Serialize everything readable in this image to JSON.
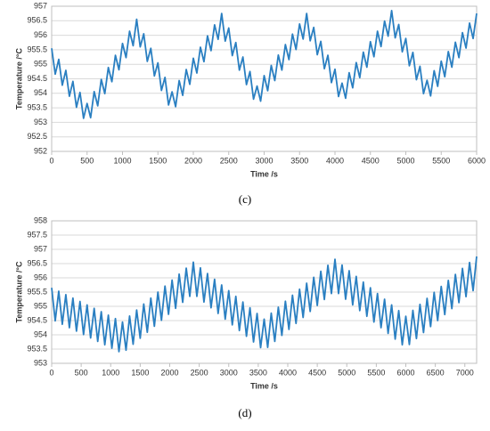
{
  "chart_data": [
    {
      "type": "line",
      "caption": "(c)",
      "y_label": "Temperature /°C",
      "x_label": "Time /s",
      "color": "#2a7fc1",
      "grid": true,
      "xlim": [
        0,
        6000
      ],
      "xticks": [
        0,
        500,
        1000,
        1500,
        2000,
        2500,
        3000,
        3500,
        4000,
        4500,
        5000,
        5500,
        6000
      ],
      "ylim": [
        952,
        957
      ],
      "yticks": [
        952,
        952.5,
        953,
        953.5,
        954,
        954.5,
        955,
        955.5,
        956,
        956.5,
        957
      ],
      "x": [
        0,
        50,
        100,
        150,
        200,
        250,
        300,
        350,
        400,
        450,
        500,
        550,
        600,
        650,
        700,
        750,
        800,
        850,
        900,
        950,
        1000,
        1050,
        1100,
        1150,
        1200,
        1250,
        1300,
        1350,
        1400,
        1450,
        1500,
        1550,
        1600,
        1650,
        1700,
        1750,
        1800,
        1850,
        1900,
        1950,
        2000,
        2050,
        2100,
        2150,
        2200,
        2250,
        2300,
        2350,
        2400,
        2450,
        2500,
        2550,
        2600,
        2650,
        2700,
        2750,
        2800,
        2850,
        2900,
        2950,
        3000,
        3050,
        3100,
        3150,
        3200,
        3250,
        3300,
        3350,
        3400,
        3450,
        3500,
        3550,
        3600,
        3650,
        3700,
        3750,
        3800,
        3850,
        3900,
        3950,
        4000,
        4050,
        4100,
        4150,
        4200,
        4250,
        4300,
        4350,
        4400,
        4450,
        4500,
        4550,
        4600,
        4650,
        4700,
        4750,
        4800,
        4850,
        4900,
        4950,
        5000,
        5050,
        5100,
        5150,
        5200,
        5250,
        5300,
        5350,
        5400,
        5450,
        5500,
        5550,
        5600,
        5650,
        5700,
        5750,
        5800,
        5850,
        5900,
        5950,
        6000
      ],
      "values": [
        955.55,
        954.66,
        955.17,
        954.28,
        954.79,
        953.9,
        954.41,
        953.52,
        954.03,
        953.14,
        953.65,
        953.16,
        954.06,
        953.57,
        954.48,
        953.99,
        954.89,
        954.4,
        955.31,
        954.81,
        955.72,
        955.23,
        956.14,
        955.64,
        956.55,
        955.6,
        956.05,
        955.1,
        955.55,
        954.6,
        955.05,
        954.1,
        954.55,
        953.6,
        954.05,
        953.54,
        954.44,
        953.93,
        954.82,
        954.31,
        955.21,
        954.7,
        955.59,
        955.09,
        955.98,
        955.47,
        956.36,
        955.86,
        956.75,
        955.8,
        956.25,
        955.3,
        955.75,
        954.8,
        955.25,
        954.3,
        954.75,
        953.8,
        954.25,
        953.73,
        954.61,
        954.09,
        954.96,
        954.44,
        955.32,
        954.8,
        955.68,
        955.16,
        956.04,
        955.51,
        956.39,
        955.87,
        956.75,
        955.81,
        956.27,
        955.33,
        955.79,
        954.85,
        955.31,
        954.37,
        954.83,
        953.89,
        954.35,
        953.83,
        954.71,
        954.19,
        955.06,
        954.54,
        955.42,
        954.9,
        955.78,
        955.26,
        956.14,
        955.61,
        956.49,
        955.97,
        956.85,
        955.91,
        956.37,
        955.43,
        955.89,
        954.95,
        955.41,
        954.47,
        954.93,
        953.99,
        954.45,
        953.91,
        954.78,
        954.24,
        955.11,
        954.57,
        955.44,
        954.9,
        955.76,
        955.23,
        956.09,
        955.56,
        956.42,
        955.89,
        956.75
      ]
    },
    {
      "type": "line",
      "caption": "(d)",
      "y_label": "Temperature /°C",
      "x_label": "Time /s",
      "color": "#2a7fc1",
      "grid": true,
      "xlim": [
        0,
        7200
      ],
      "xticks": [
        0,
        500,
        1000,
        1500,
        2000,
        2500,
        3000,
        3500,
        4000,
        4500,
        5000,
        5500,
        6000,
        6500,
        7000
      ],
      "ylim": [
        953,
        958
      ],
      "yticks": [
        953,
        953.5,
        954,
        954.5,
        955,
        955.5,
        956,
        956.5,
        957,
        957.5,
        958
      ],
      "x": [
        0,
        60,
        120,
        180,
        240,
        300,
        360,
        420,
        480,
        540,
        600,
        660,
        720,
        780,
        840,
        900,
        960,
        1020,
        1080,
        1140,
        1200,
        1260,
        1320,
        1380,
        1440,
        1500,
        1560,
        1620,
        1680,
        1740,
        1800,
        1860,
        1920,
        1980,
        2040,
        2100,
        2160,
        2220,
        2280,
        2340,
        2400,
        2460,
        2520,
        2580,
        2640,
        2700,
        2760,
        2820,
        2880,
        2940,
        3000,
        3060,
        3120,
        3180,
        3240,
        3300,
        3360,
        3420,
        3480,
        3540,
        3600,
        3660,
        3720,
        3780,
        3840,
        3900,
        3960,
        4020,
        4080,
        4140,
        4200,
        4260,
        4320,
        4380,
        4440,
        4500,
        4560,
        4620,
        4680,
        4740,
        4800,
        4860,
        4920,
        4980,
        5040,
        5100,
        5160,
        5220,
        5280,
        5340,
        5400,
        5460,
        5520,
        5580,
        5640,
        5700,
        5760,
        5820,
        5880,
        5940,
        6000,
        6060,
        6120,
        6180,
        6240,
        6300,
        6360,
        6420,
        6480,
        6540,
        6600,
        6660,
        6720,
        6780,
        6840,
        6900,
        6960,
        7020,
        7080,
        7140,
        7200
      ],
      "values": [
        955.65,
        954.49,
        955.53,
        954.37,
        955.41,
        954.25,
        955.29,
        954.13,
        955.17,
        954.01,
        955.05,
        953.89,
        954.93,
        953.77,
        954.81,
        953.65,
        954.69,
        953.53,
        954.57,
        953.41,
        954.45,
        953.46,
        954.66,
        953.67,
        954.87,
        953.88,
        955.08,
        954.09,
        955.29,
        954.3,
        955.5,
        954.51,
        955.71,
        954.72,
        955.92,
        954.93,
        956.13,
        955.14,
        956.34,
        955.35,
        956.55,
        955.35,
        956.35,
        955.15,
        956.15,
        954.95,
        955.95,
        954.75,
        955.75,
        954.55,
        955.55,
        954.35,
        955.35,
        954.15,
        955.15,
        953.95,
        954.95,
        953.75,
        954.75,
        953.55,
        954.55,
        953.56,
        954.76,
        953.77,
        954.97,
        953.98,
        955.18,
        954.19,
        955.39,
        954.4,
        955.6,
        954.61,
        955.81,
        954.82,
        956.02,
        955.03,
        956.23,
        955.24,
        956.44,
        955.45,
        956.65,
        955.45,
        956.45,
        955.25,
        956.25,
        955.05,
        956.05,
        954.85,
        955.85,
        954.65,
        955.65,
        954.45,
        955.45,
        954.25,
        955.25,
        954.05,
        955.05,
        953.85,
        954.85,
        953.65,
        954.65,
        953.66,
        954.86,
        953.87,
        955.07,
        954.08,
        955.28,
        954.29,
        955.49,
        954.5,
        955.7,
        954.71,
        955.91,
        954.92,
        956.12,
        955.13,
        956.33,
        955.34,
        956.54,
        955.55,
        956.75
      ]
    }
  ]
}
